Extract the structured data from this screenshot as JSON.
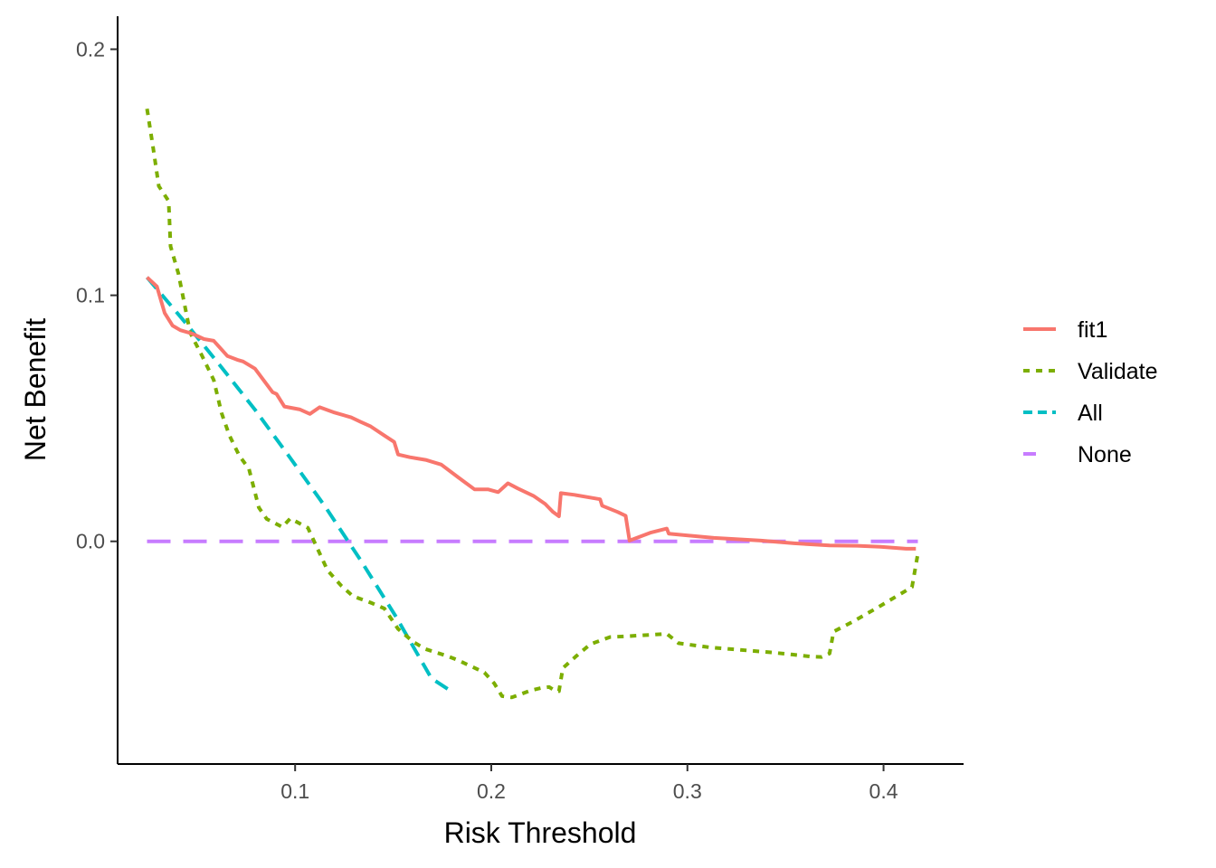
{
  "chart_data": {
    "type": "line",
    "title": "",
    "xlabel": "Risk Threshold",
    "ylabel": "Net Benefit",
    "xlim": [
      0.0095,
      0.4408
    ],
    "ylim": [
      -0.0905,
      0.2134
    ],
    "xticks": [
      0.1,
      0.2,
      0.3,
      0.4
    ],
    "xtick_labels": [
      "0.1",
      "0.2",
      "0.3",
      "0.4"
    ],
    "yticks": [
      0.0,
      0.1,
      0.2
    ],
    "ytick_labels": [
      "0.0",
      "0.1",
      "0.2"
    ],
    "grid": false,
    "legend_position": "right",
    "series": [
      {
        "name": "fit1",
        "color": "#F8766D",
        "dash": "solid",
        "points": [
          [
            0.0245,
            0.1073
          ],
          [
            0.0295,
            0.1036
          ],
          [
            0.0335,
            0.0928
          ],
          [
            0.0375,
            0.0877
          ],
          [
            0.0415,
            0.0858
          ],
          [
            0.0475,
            0.0844
          ],
          [
            0.0535,
            0.0822
          ],
          [
            0.0585,
            0.0815
          ],
          [
            0.0655,
            0.0753
          ],
          [
            0.0705,
            0.0738
          ],
          [
            0.0735,
            0.0731
          ],
          [
            0.0795,
            0.0702
          ],
          [
            0.0885,
            0.0606
          ],
          [
            0.0905,
            0.0599
          ],
          [
            0.0945,
            0.0548
          ],
          [
            0.1025,
            0.0536
          ],
          [
            0.1075,
            0.0518
          ],
          [
            0.1125,
            0.0545
          ],
          [
            0.1195,
            0.0525
          ],
          [
            0.1285,
            0.0504
          ],
          [
            0.1335,
            0.0485
          ],
          [
            0.1385,
            0.0467
          ],
          [
            0.1455,
            0.043
          ],
          [
            0.1505,
            0.0404
          ],
          [
            0.1525,
            0.0353
          ],
          [
            0.1585,
            0.0342
          ],
          [
            0.1665,
            0.0331
          ],
          [
            0.1745,
            0.0312
          ],
          [
            0.1835,
            0.0258
          ],
          [
            0.1915,
            0.0211
          ],
          [
            0.1985,
            0.0211
          ],
          [
            0.2035,
            0.02
          ],
          [
            0.2085,
            0.0236
          ],
          [
            0.2135,
            0.0215
          ],
          [
            0.2215,
            0.0185
          ],
          [
            0.2275,
            0.0152
          ],
          [
            0.2315,
            0.0119
          ],
          [
            0.2345,
            0.0102
          ],
          [
            0.2355,
            0.0196
          ],
          [
            0.2425,
            0.0189
          ],
          [
            0.2555,
            0.0171
          ],
          [
            0.2565,
            0.0145
          ],
          [
            0.2645,
            0.0119
          ],
          [
            0.2685,
            0.0104
          ],
          [
            0.2705,
            0.0003
          ],
          [
            0.2815,
            0.0036
          ],
          [
            0.2895,
            0.0052
          ],
          [
            0.2905,
            0.0031
          ],
          [
            0.3135,
            0.0014
          ],
          [
            0.3375,
            0.0003
          ],
          [
            0.3545,
            -0.0008
          ],
          [
            0.3725,
            -0.0017
          ],
          [
            0.3865,
            -0.0018
          ],
          [
            0.3985,
            -0.0022
          ],
          [
            0.4115,
            -0.003
          ],
          [
            0.4165,
            -0.003
          ]
        ]
      },
      {
        "name": "Validate",
        "color": "#7CAE00",
        "dash": "dotted",
        "points": [
          [
            0.0245,
            0.1758
          ],
          [
            0.0275,
            0.1606
          ],
          [
            0.0305,
            0.1444
          ],
          [
            0.0355,
            0.1383
          ],
          [
            0.0365,
            0.1199
          ],
          [
            0.0405,
            0.1088
          ],
          [
            0.0465,
            0.0848
          ],
          [
            0.0525,
            0.0755
          ],
          [
            0.0585,
            0.0656
          ],
          [
            0.0625,
            0.0521
          ],
          [
            0.0665,
            0.043
          ],
          [
            0.0715,
            0.0349
          ],
          [
            0.0765,
            0.0294
          ],
          [
            0.0815,
            0.0137
          ],
          [
            0.0855,
            0.0091
          ],
          [
            0.0935,
            0.0058
          ],
          [
            0.0975,
            0.0093
          ],
          [
            0.1065,
            0.0055
          ],
          [
            0.1165,
            -0.0118
          ],
          [
            0.1235,
            -0.018
          ],
          [
            0.1295,
            -0.0223
          ],
          [
            0.1385,
            -0.0249
          ],
          [
            0.1455,
            -0.0273
          ],
          [
            0.1525,
            -0.0356
          ],
          [
            0.1605,
            -0.041
          ],
          [
            0.1665,
            -0.0438
          ],
          [
            0.1775,
            -0.0466
          ],
          [
            0.1825,
            -0.0481
          ],
          [
            0.1965,
            -0.0533
          ],
          [
            0.2015,
            -0.0577
          ],
          [
            0.2055,
            -0.0629
          ],
          [
            0.2105,
            -0.0634
          ],
          [
            0.2205,
            -0.0605
          ],
          [
            0.2255,
            -0.0596
          ],
          [
            0.2295,
            -0.0592
          ],
          [
            0.2325,
            -0.0607
          ],
          [
            0.2345,
            -0.0609
          ],
          [
            0.2365,
            -0.0515
          ],
          [
            0.2435,
            -0.0465
          ],
          [
            0.2505,
            -0.0418
          ],
          [
            0.2605,
            -0.0389
          ],
          [
            0.2705,
            -0.0385
          ],
          [
            0.2895,
            -0.0376
          ],
          [
            0.2955,
            -0.0414
          ],
          [
            0.3115,
            -0.0431
          ],
          [
            0.3425,
            -0.0451
          ],
          [
            0.3535,
            -0.046
          ],
          [
            0.3625,
            -0.0468
          ],
          [
            0.3685,
            -0.047
          ],
          [
            0.3725,
            -0.0456
          ],
          [
            0.3745,
            -0.0367
          ],
          [
            0.3845,
            -0.0326
          ],
          [
            0.3965,
            -0.0271
          ],
          [
            0.4145,
            -0.0186
          ],
          [
            0.4175,
            -0.005
          ]
        ]
      },
      {
        "name": "All",
        "color": "#00BFC4",
        "dash": "dashed",
        "points": [
          [
            0.0245,
            0.1073
          ],
          [
            0.0435,
            0.0894
          ],
          [
            0.0615,
            0.0717
          ],
          [
            0.0795,
            0.0535
          ],
          [
            0.0975,
            0.0339
          ],
          [
            0.1155,
            0.0139
          ],
          [
            0.1335,
            -0.0078
          ],
          [
            0.1515,
            -0.0307
          ],
          [
            0.1695,
            -0.0557
          ],
          [
            0.1795,
            -0.0609
          ]
        ]
      },
      {
        "name": "None",
        "color": "#C77CFF",
        "dash": "longdash",
        "points": [
          [
            0.0245,
            0.0
          ],
          [
            0.4175,
            0.0
          ]
        ]
      }
    ]
  }
}
